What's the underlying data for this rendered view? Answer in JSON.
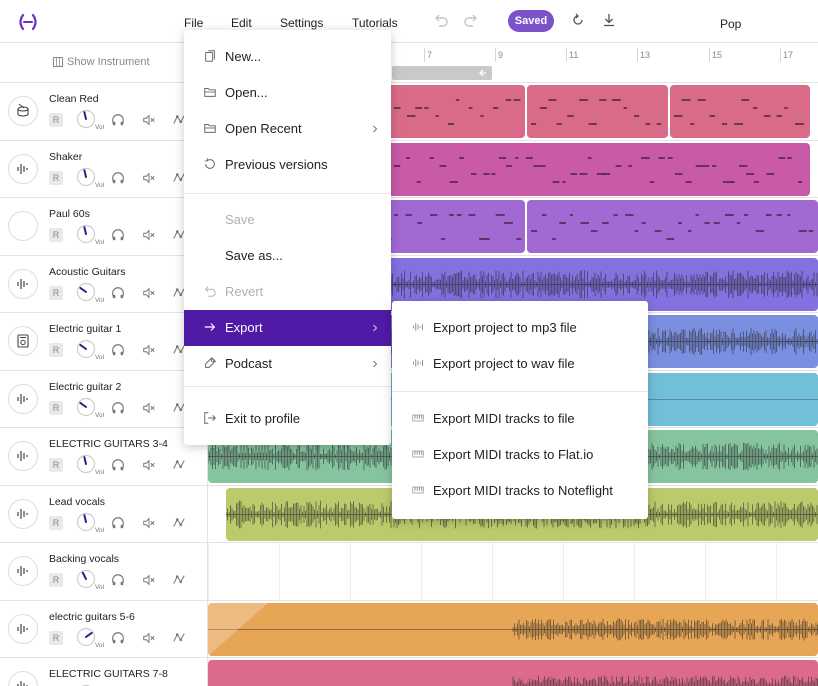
{
  "menubar": {
    "items": [
      {
        "label": "File"
      },
      {
        "label": "Edit"
      },
      {
        "label": "Settings"
      },
      {
        "label": "Tutorials"
      }
    ],
    "saved_label": "Saved",
    "genre": "Pop"
  },
  "sidebar": {
    "show_instrument_label": "Show Instrument",
    "rec_label": "R",
    "vol_label": "Vol"
  },
  "ruler": {
    "ticks": [
      "7",
      "9",
      "11",
      "13",
      "15",
      "17"
    ]
  },
  "tracks": [
    {
      "name": "Clean Red",
      "icon": "drum-icon",
      "knob": 0.45
    },
    {
      "name": "Shaker",
      "icon": "waveform-icon",
      "knob": 0.45
    },
    {
      "name": "Paul 60s",
      "icon": "empty-icon",
      "knob": 0.45
    },
    {
      "name": "Acoustic Guitars",
      "icon": "waveform-icon",
      "knob": 0.3
    },
    {
      "name": "Electric guitar 1",
      "icon": "amp-icon",
      "knob": 0.3
    },
    {
      "name": "Electric guitar 2",
      "icon": "waveform-icon",
      "knob": 0.3
    },
    {
      "name": "ELECTRIC GUITARS 3-4",
      "icon": "waveform-icon",
      "knob": 0.45
    },
    {
      "name": "Lead vocals",
      "icon": "waveform-icon",
      "knob": 0.45
    },
    {
      "name": "Backing vocals",
      "icon": "waveform-icon",
      "knob": 0.4
    },
    {
      "name": "electric guitars 5-6",
      "icon": "waveform-icon",
      "knob": 0.7
    },
    {
      "name": "ELECTRIC GUITARS 7-8",
      "icon": "waveform-icon",
      "knob": 0.45
    }
  ],
  "file_menu": {
    "items": [
      {
        "label": "New...",
        "icon": "new-file-icon",
        "disabled": false,
        "submenu": false
      },
      {
        "label": "Open...",
        "icon": "folder-icon",
        "disabled": false,
        "submenu": false
      },
      {
        "label": "Open Recent",
        "icon": "folder-icon",
        "disabled": false,
        "submenu": true
      },
      {
        "label": "Previous versions",
        "icon": "history-icon",
        "disabled": false,
        "submenu": false
      },
      {
        "label": "Save",
        "icon": "",
        "disabled": true,
        "submenu": false
      },
      {
        "label": "Save as...",
        "icon": "",
        "disabled": false,
        "submenu": false
      },
      {
        "label": "Revert",
        "icon": "revert-icon",
        "disabled": true,
        "submenu": false
      },
      {
        "label": "Export",
        "icon": "arrow-right-icon",
        "disabled": false,
        "submenu": true,
        "active": true
      },
      {
        "label": "Podcast",
        "icon": "mic-icon",
        "disabled": false,
        "submenu": true
      },
      {
        "label": "Exit to profile",
        "icon": "exit-icon",
        "disabled": false,
        "submenu": false
      }
    ]
  },
  "export_menu": {
    "items": [
      {
        "label": "Export project to mp3 file",
        "icon": "audio-icon"
      },
      {
        "label": "Export project to wav file",
        "icon": "audio-icon"
      },
      {
        "label": "Export MIDI tracks to file",
        "icon": "midi-icon"
      },
      {
        "label": "Export MIDI tracks to Flat.io",
        "icon": "midi-icon"
      },
      {
        "label": "Export MIDI tracks to Noteflight",
        "icon": "midi-icon"
      }
    ]
  },
  "colors": {
    "accent": "#4f1aa6",
    "saved_badge": "#7b52c9",
    "clip_red": "#d96b88",
    "clip_magenta": "#c95aa8",
    "clip_purple": "#a369d3",
    "clip_indigo": "#8470df",
    "clip_blue": "#7a8fe0",
    "clip_cyan": "#72bfd8",
    "clip_green": "#86c49f",
    "clip_olive": "#bcca6c",
    "clip_orange": "#e7a556",
    "clip_pink": "#dc6a8c"
  }
}
